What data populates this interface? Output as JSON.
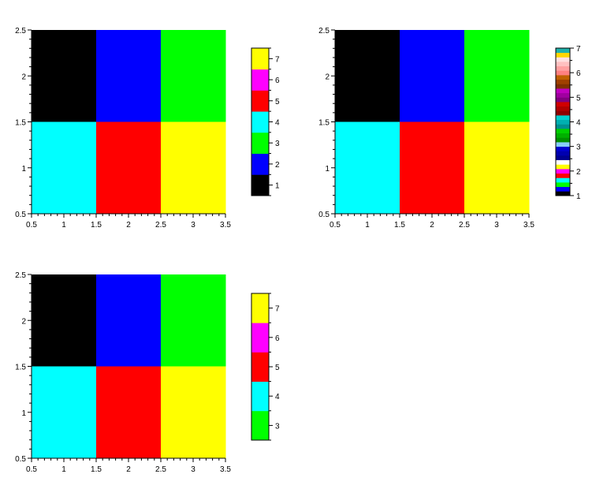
{
  "chart_data": [
    {
      "type": "heatmap",
      "x_ticks": [
        "0.5",
        "1",
        "1.5",
        "2",
        "2.5",
        "3",
        "3.5"
      ],
      "y_ticks": [
        "0.5",
        "1",
        "1.5",
        "2",
        "2.5"
      ],
      "xlim": [
        0.5,
        3.5
      ],
      "ylim": [
        0.5,
        2.5
      ],
      "cells": [
        {
          "x": 1,
          "y": 2,
          "value": 1,
          "color": "#000000"
        },
        {
          "x": 2,
          "y": 2,
          "value": 2,
          "color": "#0000ff"
        },
        {
          "x": 3,
          "y": 2,
          "value": 3,
          "color": "#00ff00"
        },
        {
          "x": 1,
          "y": 1,
          "value": 4,
          "color": "#00ffff"
        },
        {
          "x": 2,
          "y": 1,
          "value": 5,
          "color": "#ff0000"
        },
        {
          "x": 3,
          "y": 1,
          "value": 7,
          "color": "#ffff00"
        }
      ],
      "colorbar": {
        "range": [
          0.5,
          7.5
        ],
        "ticks": [
          "1",
          "2",
          "3",
          "4",
          "5",
          "6",
          "7"
        ],
        "colors": [
          "#000000",
          "#0000ff",
          "#00ff00",
          "#00ffff",
          "#ff0000",
          "#ff00ff",
          "#ffff00"
        ]
      }
    },
    {
      "type": "heatmap",
      "x_ticks": [
        "0.5",
        "1",
        "1.5",
        "2",
        "2.5",
        "3",
        "3.5"
      ],
      "y_ticks": [
        "0.5",
        "1",
        "1.5",
        "2",
        "2.5"
      ],
      "xlim": [
        0.5,
        3.5
      ],
      "ylim": [
        0.5,
        2.5
      ],
      "cells": [
        {
          "x": 1,
          "y": 2,
          "value": 1,
          "color": "#000000"
        },
        {
          "x": 2,
          "y": 2,
          "value": 2,
          "color": "#0000ff"
        },
        {
          "x": 3,
          "y": 2,
          "value": 3,
          "color": "#00ff00"
        },
        {
          "x": 1,
          "y": 1,
          "value": 4,
          "color": "#00ffff"
        },
        {
          "x": 2,
          "y": 1,
          "value": 5,
          "color": "#ff0000"
        },
        {
          "x": 3,
          "y": 1,
          "value": 7,
          "color": "#ffff00"
        }
      ],
      "colorbar": {
        "range": [
          1,
          7
        ],
        "ticks": [
          "1",
          "2",
          "3",
          "4",
          "5",
          "6",
          "7"
        ],
        "colors": [
          "#000000",
          "#0000ff",
          "#00ff00",
          "#00ffff",
          "#ff0000",
          "#ff00ff",
          "#ffff00",
          "#ffffff",
          "#000090",
          "#0000b0",
          "#0000d0",
          "#87cefa",
          "#009000",
          "#00b000",
          "#00d000",
          "#009090",
          "#00b0b0",
          "#00d0d0",
          "#900000",
          "#b00000",
          "#d00000",
          "#800080",
          "#a000a0",
          "#c000c0",
          "#803000",
          "#a04000",
          "#c06000",
          "#ff8080",
          "#ffa0a0",
          "#ffc0c0",
          "#ffe0e0",
          "#ffd700",
          "#20b2aa"
        ]
      }
    },
    {
      "type": "heatmap",
      "x_ticks": [
        "0.5",
        "1",
        "1.5",
        "2",
        "2.5",
        "3",
        "3.5"
      ],
      "y_ticks": [
        "0.5",
        "1",
        "1.5",
        "2",
        "2.5"
      ],
      "xlim": [
        0.5,
        3.5
      ],
      "ylim": [
        0.5,
        2.5
      ],
      "cells": [
        {
          "x": 1,
          "y": 2,
          "value": 1,
          "color": "#000000"
        },
        {
          "x": 2,
          "y": 2,
          "value": 2,
          "color": "#0000ff"
        },
        {
          "x": 3,
          "y": 2,
          "value": 3,
          "color": "#00ff00"
        },
        {
          "x": 1,
          "y": 1,
          "value": 4,
          "color": "#00ffff"
        },
        {
          "x": 2,
          "y": 1,
          "value": 5,
          "color": "#ff0000"
        },
        {
          "x": 3,
          "y": 1,
          "value": 7,
          "color": "#ffff00"
        }
      ],
      "colorbar": {
        "range": [
          2.5,
          7.5
        ],
        "ticks": [
          "3",
          "4",
          "5",
          "6",
          "7"
        ],
        "colors": [
          "#00ff00",
          "#00ffff",
          "#ff0000",
          "#ff00ff",
          "#ffff00"
        ]
      }
    }
  ]
}
